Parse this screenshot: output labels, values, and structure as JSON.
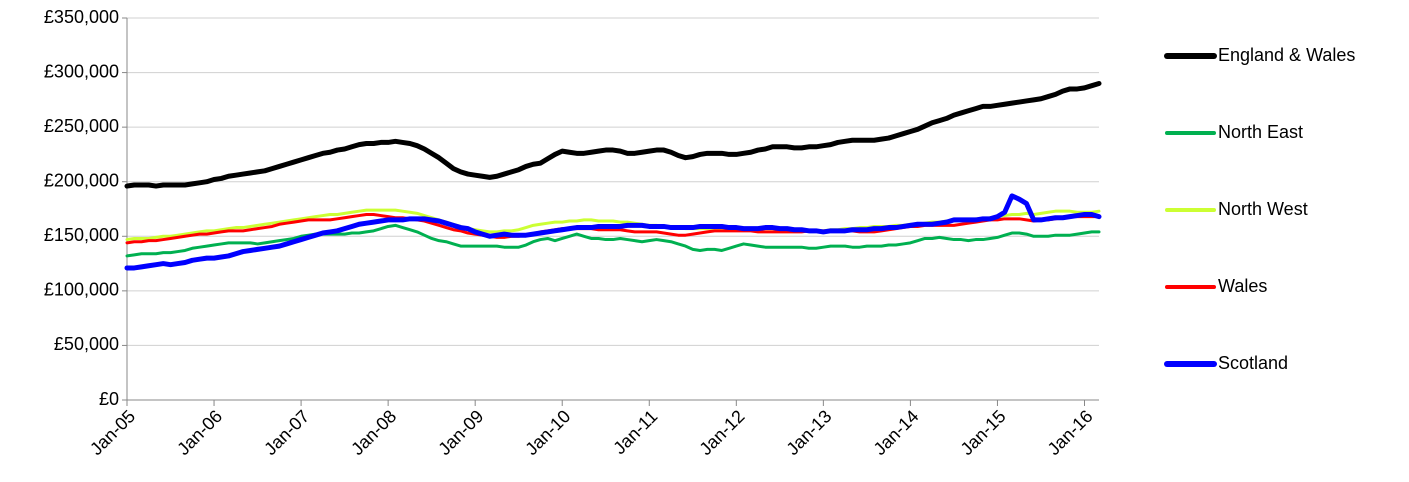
{
  "chart_data": {
    "type": "line",
    "categories": [
      "Jan-05",
      null,
      null,
      null,
      null,
      null,
      null,
      null,
      null,
      null,
      null,
      null,
      "Jan-06",
      null,
      null,
      null,
      null,
      null,
      null,
      null,
      null,
      null,
      null,
      null,
      "Jan-07",
      null,
      null,
      null,
      null,
      null,
      null,
      null,
      null,
      null,
      null,
      null,
      "Jan-08",
      null,
      null,
      null,
      null,
      null,
      null,
      null,
      null,
      null,
      null,
      null,
      "Jan-09",
      null,
      null,
      null,
      null,
      null,
      null,
      null,
      null,
      null,
      null,
      null,
      "Jan-10",
      null,
      null,
      null,
      null,
      null,
      null,
      null,
      null,
      null,
      null,
      null,
      "Jan-11",
      null,
      null,
      null,
      null,
      null,
      null,
      null,
      null,
      null,
      null,
      null,
      "Jan-12",
      null,
      null,
      null,
      null,
      null,
      null,
      null,
      null,
      null,
      null,
      null,
      "Jan-13",
      null,
      null,
      null,
      null,
      null,
      null,
      null,
      null,
      null,
      null,
      null,
      "Jan-14",
      null,
      null,
      null,
      null,
      null,
      null,
      null,
      null,
      null,
      null,
      null,
      "Jan-15",
      null,
      null,
      null,
      null,
      null,
      null,
      null,
      null,
      null,
      null,
      null,
      "Jan-16",
      null,
      null
    ],
    "ylim": [
      0,
      350000
    ],
    "yticks": [
      {
        "value": 0,
        "label": "£0"
      },
      {
        "value": 50000,
        "label": "£50,000"
      },
      {
        "value": 100000,
        "label": "£100,000"
      },
      {
        "value": 150000,
        "label": "£150,000"
      },
      {
        "value": 200000,
        "label": "£200,000"
      },
      {
        "value": 250000,
        "label": "£250,000"
      },
      {
        "value": 300000,
        "label": "£300,000"
      },
      {
        "value": 350000,
        "label": "£350,000"
      }
    ],
    "grid": true,
    "legend": "right",
    "series": [
      {
        "name": "England & Wales",
        "color": "#000000",
        "width": 5,
        "values": [
          196000,
          197000,
          197000,
          197000,
          196000,
          197000,
          197000,
          197000,
          197000,
          198000,
          199000,
          200000,
          202000,
          203000,
          205000,
          206000,
          207000,
          208000,
          209000,
          210000,
          212000,
          214000,
          216000,
          218000,
          220000,
          222000,
          224000,
          226000,
          227000,
          229000,
          230000,
          232000,
          234000,
          235000,
          235000,
          236000,
          236000,
          237000,
          236000,
          235000,
          233000,
          230000,
          226000,
          222000,
          217000,
          212000,
          209000,
          207000,
          206000,
          205000,
          204000,
          205000,
          207000,
          209000,
          211000,
          214000,
          216000,
          217000,
          221000,
          225000,
          228000,
          227000,
          226000,
          226000,
          227000,
          228000,
          229000,
          229000,
          228000,
          226000,
          226000,
          227000,
          228000,
          229000,
          229000,
          227000,
          224000,
          222000,
          223000,
          225000,
          226000,
          226000,
          226000,
          225000,
          225000,
          226000,
          227000,
          229000,
          230000,
          232000,
          232000,
          232000,
          231000,
          231000,
          232000,
          232000,
          233000,
          234000,
          236000,
          237000,
          238000,
          238000,
          238000,
          238000,
          239000,
          240000,
          242000,
          244000,
          246000,
          248000,
          251000,
          254000,
          256000,
          258000,
          261000,
          263000,
          265000,
          267000,
          269000,
          269000,
          270000,
          271000,
          272000,
          273000,
          274000,
          275000,
          276000,
          278000,
          280000,
          283000,
          285000,
          285000,
          286000,
          288000,
          290000
        ]
      },
      {
        "name": "North East",
        "color": "#00b050",
        "width": 3,
        "values": [
          132000,
          133000,
          134000,
          134000,
          134000,
          135000,
          135000,
          136000,
          137000,
          139000,
          140000,
          141000,
          142000,
          143000,
          144000,
          144000,
          144000,
          144000,
          143000,
          144000,
          145000,
          146000,
          147000,
          148000,
          150000,
          151000,
          152000,
          152000,
          152000,
          152000,
          152000,
          153000,
          153000,
          154000,
          155000,
          157000,
          159000,
          160000,
          158000,
          156000,
          154000,
          151000,
          148000,
          146000,
          145000,
          143000,
          141000,
          141000,
          141000,
          141000,
          141000,
          141000,
          140000,
          140000,
          140000,
          142000,
          145000,
          147000,
          148000,
          146000,
          148000,
          150000,
          152000,
          150000,
          148000,
          148000,
          147000,
          147000,
          148000,
          147000,
          146000,
          145000,
          146000,
          147000,
          146000,
          145000,
          143000,
          141000,
          138000,
          137000,
          138000,
          138000,
          137000,
          139000,
          141000,
          143000,
          142000,
          141000,
          140000,
          140000,
          140000,
          140000,
          140000,
          140000,
          139000,
          139000,
          140000,
          141000,
          141000,
          141000,
          140000,
          140000,
          141000,
          141000,
          141000,
          142000,
          142000,
          143000,
          144000,
          146000,
          148000,
          148000,
          149000,
          148000,
          147000,
          147000,
          146000,
          147000,
          147000,
          148000,
          149000,
          151000,
          153000,
          153000,
          152000,
          150000,
          150000,
          150000,
          151000,
          151000,
          151000,
          152000,
          153000,
          154000,
          154000
        ]
      },
      {
        "name": "North West",
        "color": "#ccff33",
        "width": 3,
        "values": [
          147000,
          148000,
          148000,
          148000,
          149000,
          150000,
          150000,
          151000,
          152000,
          153000,
          154000,
          155000,
          155000,
          156000,
          157000,
          158000,
          158000,
          159000,
          160000,
          161000,
          162000,
          163000,
          164000,
          165000,
          166000,
          167000,
          168000,
          169000,
          170000,
          170000,
          171000,
          172000,
          173000,
          174000,
          174000,
          174000,
          174000,
          174000,
          173000,
          172000,
          171000,
          169000,
          167000,
          165000,
          163000,
          161000,
          159000,
          157000,
          156000,
          155000,
          154000,
          154000,
          155000,
          155000,
          156000,
          158000,
          160000,
          161000,
          162000,
          163000,
          163000,
          164000,
          164000,
          165000,
          165000,
          164000,
          164000,
          164000,
          163000,
          163000,
          162000,
          161000,
          160000,
          160000,
          159000,
          158000,
          158000,
          157000,
          157000,
          157000,
          157000,
          157000,
          157000,
          157000,
          157000,
          157000,
          157000,
          157000,
          157000,
          157000,
          156000,
          156000,
          156000,
          155000,
          155000,
          155000,
          155000,
          156000,
          156000,
          157000,
          157000,
          158000,
          158000,
          159000,
          159000,
          159000,
          160000,
          160000,
          161000,
          161000,
          162000,
          163000,
          163000,
          164000,
          164000,
          165000,
          165000,
          166000,
          166000,
          167000,
          168000,
          169000,
          170000,
          170000,
          171000,
          170000,
          171000,
          172000,
          173000,
          173000,
          173000,
          172000,
          172000,
          172000,
          173000
        ]
      },
      {
        "name": "Wales",
        "color": "#ff0000",
        "width": 3,
        "values": [
          144000,
          145000,
          145000,
          146000,
          146000,
          147000,
          148000,
          149000,
          150000,
          151000,
          152000,
          152000,
          153000,
          154000,
          155000,
          155000,
          155000,
          156000,
          157000,
          158000,
          159000,
          161000,
          162000,
          163000,
          164000,
          165000,
          165000,
          165000,
          165000,
          166000,
          167000,
          168000,
          169000,
          170000,
          170000,
          169000,
          168000,
          167000,
          167000,
          166000,
          165000,
          164000,
          162000,
          160000,
          158000,
          156000,
          155000,
          153000,
          152000,
          151000,
          150000,
          149000,
          149000,
          150000,
          150000,
          151000,
          152000,
          154000,
          155000,
          156000,
          157000,
          157000,
          157000,
          157000,
          157000,
          156000,
          156000,
          156000,
          156000,
          155000,
          154000,
          154000,
          154000,
          154000,
          153000,
          152000,
          151000,
          151000,
          152000,
          153000,
          154000,
          155000,
          155000,
          155000,
          155000,
          155000,
          155000,
          154000,
          154000,
          154000,
          154000,
          154000,
          154000,
          154000,
          155000,
          155000,
          155000,
          155000,
          155000,
          155000,
          155000,
          154000,
          154000,
          154000,
          155000,
          156000,
          157000,
          158000,
          159000,
          159000,
          160000,
          160000,
          160000,
          160000,
          160000,
          161000,
          162000,
          163000,
          164000,
          165000,
          165000,
          166000,
          166000,
          166000,
          165000,
          164000,
          165000,
          165000,
          166000,
          167000,
          168000,
          168000,
          168000,
          168000,
          168000
        ]
      },
      {
        "name": "Scotland",
        "color": "#0000ff",
        "width": 5,
        "values": [
          121000,
          121000,
          122000,
          123000,
          124000,
          125000,
          124000,
          125000,
          126000,
          128000,
          129000,
          130000,
          130000,
          131000,
          132000,
          134000,
          136000,
          137000,
          138000,
          139000,
          140000,
          141000,
          143000,
          145000,
          147000,
          149000,
          151000,
          153000,
          154000,
          155000,
          157000,
          159000,
          161000,
          162000,
          163000,
          164000,
          165000,
          165000,
          165000,
          166000,
          166000,
          166000,
          165000,
          164000,
          162000,
          160000,
          158000,
          157000,
          154000,
          152000,
          150000,
          151000,
          152000,
          151000,
          151000,
          151000,
          152000,
          153000,
          154000,
          155000,
          156000,
          157000,
          158000,
          158000,
          158000,
          159000,
          159000,
          159000,
          159000,
          160000,
          160000,
          160000,
          159000,
          159000,
          159000,
          158000,
          158000,
          158000,
          158000,
          159000,
          159000,
          159000,
          159000,
          158000,
          158000,
          157000,
          157000,
          157000,
          158000,
          158000,
          157000,
          157000,
          156000,
          156000,
          155000,
          155000,
          154000,
          155000,
          155000,
          155000,
          156000,
          156000,
          156000,
          157000,
          157000,
          158000,
          158000,
          159000,
          160000,
          161000,
          161000,
          161000,
          162000,
          163000,
          165000,
          165000,
          165000,
          165000,
          166000,
          166000,
          168000,
          172000,
          187000,
          184000,
          180000,
          165000,
          165000,
          166000,
          167000,
          167000,
          168000,
          169000,
          170000,
          170000,
          168000
        ]
      }
    ]
  }
}
